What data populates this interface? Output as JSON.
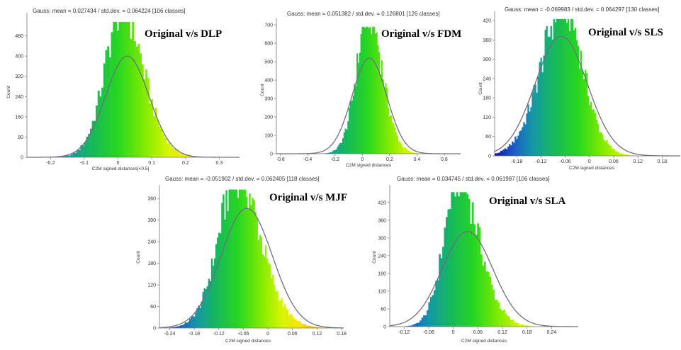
{
  "chart_data": [
    {
      "type": "bar",
      "gauss_label": "Gauss: mean = 0.027434 / std.dev. = 0.064224 [106 classes]",
      "annotation": "Original v/s DLP",
      "xlabel": "C2M signed distances[<0.5]",
      "ylabel": "Count",
      "xlim": [
        -0.27,
        0.36
      ],
      "ylim": [
        0,
        560
      ],
      "xticks": [
        -0.2,
        -0.1,
        0,
        0.1,
        0.2,
        0.3
      ],
      "xtick_labels": [
        "-0.2",
        "-0.1",
        "0",
        "0.1",
        "0.2",
        "0.3"
      ],
      "yticks": [
        0,
        80,
        160,
        240,
        320,
        400,
        480
      ],
      "gauss": {
        "mean": 0.027434,
        "std": 0.064224,
        "peak": 400
      },
      "hist": {
        "peak": 535,
        "sigma_left": 0.055,
        "sigma_right": 0.068,
        "center": 0.012,
        "classes": 106
      },
      "color_range": [
        -0.27,
        0.33
      ],
      "grid": false,
      "colors": {
        "curve": "#6e6e80"
      }
    },
    {
      "type": "bar",
      "gauss_label": "Gauss: mean = 0.051382 / std.dev. = 0.126801 [126 classes]",
      "annotation": "Original v/s FDM",
      "xlabel": "C2M signed distances",
      "ylabel": "Count",
      "xlim": [
        -0.63,
        0.72
      ],
      "ylim": [
        0,
        720
      ],
      "xticks": [
        -0.6,
        -0.4,
        -0.2,
        0,
        0.2,
        0.4,
        0.6
      ],
      "xtick_labels": [
        "-0.6",
        "-0.4",
        "-0.2",
        "0",
        "0.2",
        "0.4",
        "0.6"
      ],
      "yticks": [
        0,
        100,
        200,
        300,
        400,
        500,
        600,
        700
      ],
      "gauss": {
        "mean": 0.051382,
        "std": 0.126801,
        "peak": 520
      },
      "hist": {
        "peak": 690,
        "sigma_left": 0.095,
        "sigma_right": 0.11,
        "center": 0.045,
        "classes": 126
      },
      "color_range": [
        -0.5,
        0.7
      ],
      "grid": false,
      "colors": {
        "curve": "#6e6e80"
      }
    },
    {
      "type": "bar",
      "gauss_label": "Gauss: mean = -0.069983 / std.dev. = 0.064297 [130 classes]",
      "annotation": "Original v/s SLS",
      "xlabel": "C2M signed distances",
      "ylabel": "Count",
      "xlim": [
        -0.235,
        0.225
      ],
      "ylim": [
        0,
        440
      ],
      "xticks": [
        -0.18,
        -0.12,
        -0.06,
        0,
        0.06,
        0.12,
        0.18
      ],
      "xtick_labels": [
        "-0.18",
        "-0.12",
        "-0.06",
        "0",
        "0.06",
        "0.12",
        "0.18"
      ],
      "yticks": [
        0,
        60,
        120,
        180,
        240,
        300,
        360,
        420
      ],
      "gauss": {
        "mean": -0.069983,
        "std": 0.064297,
        "peak": 372
      },
      "hist": {
        "peak": 425,
        "sigma_left": 0.06,
        "sigma_right": 0.052,
        "center": -0.065,
        "classes": 130
      },
      "color_range": [
        -0.235,
        0.225
      ],
      "grid": false,
      "colors": {
        "curve": "#6e6e80"
      }
    },
    {
      "type": "bar",
      "gauss_label": "Gauss: mean = -0.051902 / std.dev. = 0.062405 [118 classes]",
      "annotation": "Original v/s MJF",
      "xlabel": "C2M signed distances",
      "ylabel": "Count",
      "xlim": [
        -0.265,
        0.185
      ],
      "ylim": [
        0,
        390
      ],
      "xticks": [
        -0.24,
        -0.18,
        -0.12,
        -0.06,
        0,
        0.06,
        0.12,
        0.18
      ],
      "xtick_labels": [
        "-0.24",
        "-0.18",
        "-0.12",
        "-0.06",
        "0",
        "0.06",
        "0.12",
        "0.18"
      ],
      "yticks": [
        0,
        60,
        120,
        180,
        240,
        300,
        360
      ],
      "gauss": {
        "mean": -0.051902,
        "std": 0.062405,
        "peak": 333
      },
      "hist": {
        "peak": 385,
        "sigma_left": 0.05,
        "sigma_right": 0.062,
        "center": -0.075,
        "classes": 118
      },
      "color_range": [
        -0.26,
        0.16
      ],
      "grid": false,
      "colors": {
        "curve": "#6e6e80"
      }
    },
    {
      "type": "bar",
      "gauss_label": "Gauss: mean = 0.034745 / std.dev. = 0.061987 [106 classes]",
      "annotation": "Original v/s SLA",
      "xlabel": "C2M signed distances",
      "ylabel": "Count",
      "xlim": [
        -0.155,
        0.305
      ],
      "ylim": [
        0,
        470
      ],
      "xticks": [
        -0.12,
        -0.06,
        0,
        0.06,
        0.12,
        0.18,
        0.24
      ],
      "xtick_labels": [
        "-0.12",
        "-0.06",
        "0",
        "0.06",
        "0.12",
        "0.18",
        "0.24"
      ],
      "yticks": [
        0,
        60,
        120,
        180,
        240,
        300,
        360,
        420
      ],
      "gauss": {
        "mean": 0.034745,
        "std": 0.061987,
        "peak": 322
      },
      "hist": {
        "peak": 455,
        "sigma_left": 0.038,
        "sigma_right": 0.055,
        "center": 0.012,
        "classes": 106
      },
      "color_range": [
        -0.15,
        0.3
      ],
      "grid": false,
      "colors": {
        "curve": "#6e6e80"
      }
    }
  ]
}
